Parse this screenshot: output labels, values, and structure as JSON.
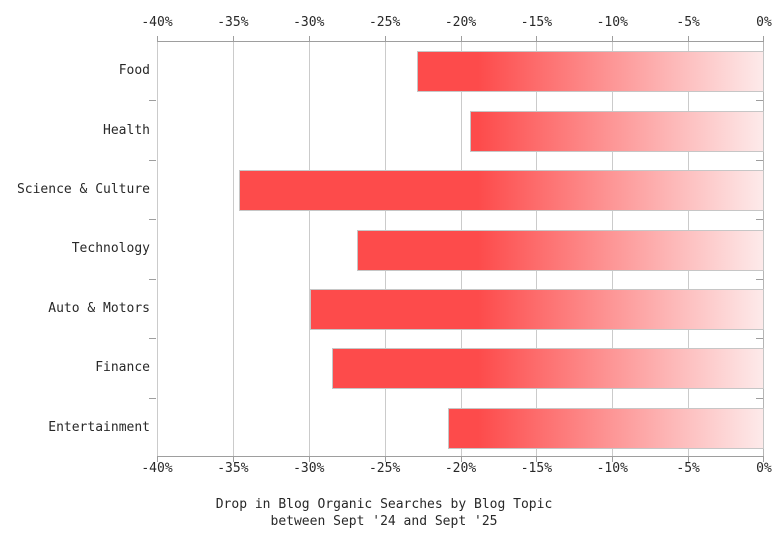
{
  "chart_data": {
    "type": "bar",
    "orientation": "horizontal",
    "title_line1": "Drop in Blog Organic Searches by Blog Topic",
    "title_line2": "between Sept '24 and Sept '25",
    "categories": [
      "Food",
      "Health",
      "Science & Culture",
      "Technology",
      "Auto & Motors",
      "Finance",
      "Entertainment"
    ],
    "values": [
      -22.9,
      -19.4,
      -34.6,
      -26.8,
      -29.9,
      -28.5,
      -20.8
    ],
    "unit": "%",
    "x_ticks": [
      "-40%",
      "-35%",
      "-30%",
      "-25%",
      "-20%",
      "-15%",
      "-10%",
      "-5%",
      "0%"
    ],
    "xlim": [
      -40,
      0
    ],
    "grid": true,
    "legend": "none",
    "colors": {
      "bar_solid": "#fd4b4b",
      "bar_fade_end": "#fdeaea",
      "bar_border": "#c6c6c6",
      "gridline": "#cbcbcb",
      "axis_line": "#9e9e9e",
      "text": "#282828"
    }
  }
}
